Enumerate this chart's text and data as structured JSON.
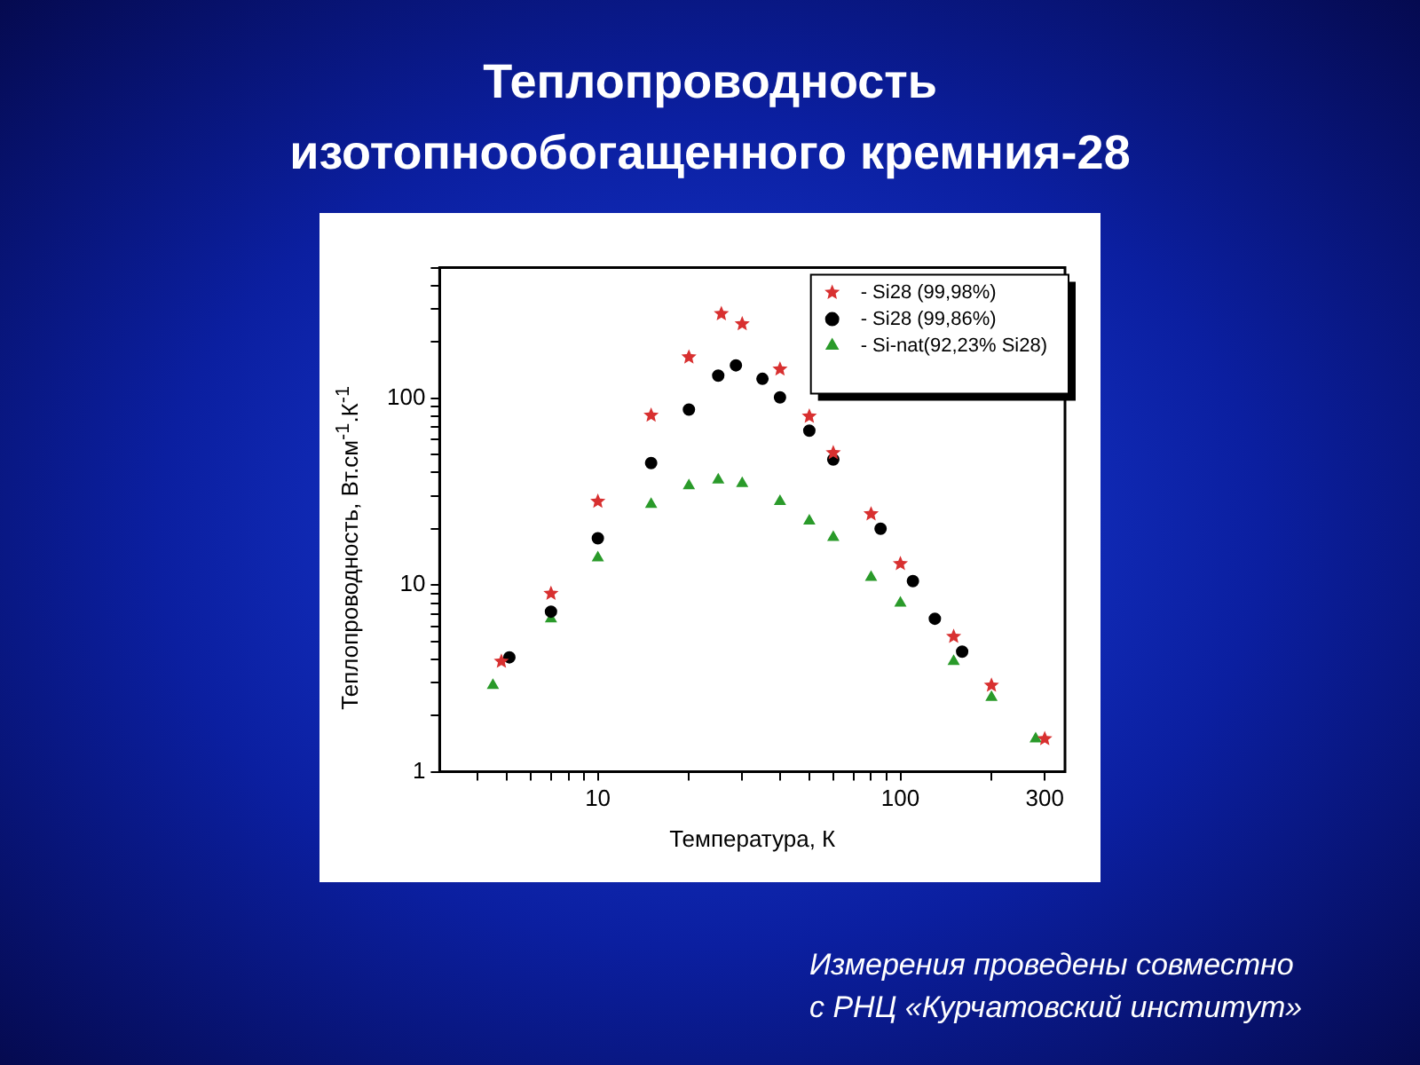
{
  "chart_data": {
    "type": "scatter",
    "title": "Теплопроводность\nизотопнообогащенного кремния-28",
    "xlabel": "Температура, К",
    "ylabel": "Теплопроводность, Вт.см$^{-1}$.К$^{-1}$",
    "log": "xy",
    "grid": false,
    "legend": "top right",
    "xlim": [
      3,
      350
    ],
    "ylim": [
      1,
      500
    ],
    "xticks": [
      {
        "value": 4,
        "label": null
      },
      {
        "value": 5,
        "label": null
      },
      {
        "value": 6,
        "label": null
      },
      {
        "value": 7,
        "label": null
      },
      {
        "value": 8,
        "label": null
      },
      {
        "value": 9,
        "label": null
      },
      10,
      {
        "value": 20,
        "label": null
      },
      {
        "value": 30,
        "label": null
      },
      {
        "value": 40,
        "label": null
      },
      {
        "value": 50,
        "label": null
      },
      {
        "value": 60,
        "label": null
      },
      {
        "value": 70,
        "label": null
      },
      {
        "value": 80,
        "label": null
      },
      {
        "value": 90,
        "label": null
      },
      100,
      {
        "value": 200,
        "label": null
      },
      300
    ],
    "yticks": [
      1,
      {
        "value": 2,
        "label": null
      },
      {
        "value": 3,
        "label": null
      },
      {
        "value": 4,
        "label": null
      },
      {
        "value": 5,
        "label": null
      },
      {
        "value": 6,
        "label": null
      },
      {
        "value": 7,
        "label": null
      },
      {
        "value": 8,
        "label": null
      },
      {
        "value": 9,
        "label": null
      },
      10,
      {
        "value": 20,
        "label": null
      },
      {
        "value": 30,
        "label": null
      },
      {
        "value": 40,
        "label": null
      },
      {
        "value": 50,
        "label": null
      },
      {
        "value": 60,
        "label": null
      },
      {
        "value": 70,
        "label": null
      },
      {
        "value": 80,
        "label": null
      },
      {
        "value": 90,
        "label": null
      },
      100,
      {
        "value": 200,
        "label": null
      },
      {
        "value": 300,
        "label": null
      },
      {
        "value": 400,
        "label": null
      },
      {
        "value": 500,
        "label": null
      }
    ],
    "series": [
      {
        "name": "- Si28 (99,98%)",
        "color": "#d83030",
        "marker": "star",
        "x": [
          4.8,
          7,
          10,
          15,
          20,
          25.6,
          30,
          40,
          50,
          60,
          80,
          100,
          150,
          200,
          300
        ],
        "values": [
          3.9,
          9,
          28,
          81,
          166,
          283,
          250,
          143,
          80,
          51,
          24,
          13,
          5.3,
          2.9,
          1.5
        ]
      },
      {
        "name": "- Si28 (99,86%)",
        "color": "#000000",
        "marker": "circle",
        "x": [
          5.1,
          7,
          10,
          15,
          20,
          25,
          28.6,
          35,
          40,
          50,
          60,
          86,
          110,
          130,
          160
        ],
        "values": [
          4.1,
          7.2,
          17.8,
          45,
          87,
          132,
          150,
          127,
          101,
          67,
          47,
          20,
          10.5,
          6.6,
          4.4
        ]
      },
      {
        "name": "- Si-nat(92,23% Si28)",
        "color": "#2a9a2a",
        "marker": "triangle",
        "x": [
          4.5,
          7,
          10,
          15,
          20,
          25,
          30,
          40,
          50,
          60,
          80,
          100,
          150,
          200,
          280
        ],
        "values": [
          2.9,
          6.6,
          14,
          27,
          34,
          36.5,
          35,
          28,
          22,
          18,
          11,
          8,
          3.9,
          2.5,
          1.5
        ]
      }
    ],
    "annotations": [
      "Измерения проведены совместно\nс РНЦ «Курчатовский институт»"
    ]
  }
}
